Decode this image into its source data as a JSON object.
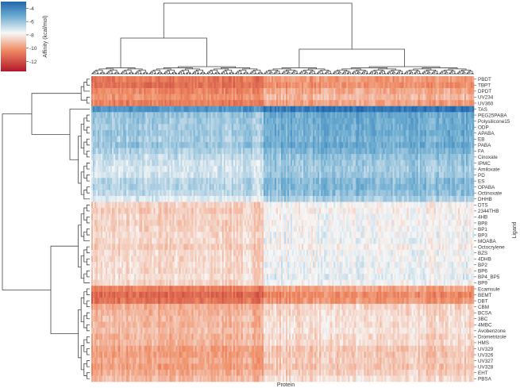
{
  "chart_data": {
    "type": "heatmap",
    "title": "",
    "xlabel": "Protein",
    "ylabel": "Ligand",
    "colorbar": {
      "label": "Affinity (kcal/mol)",
      "ticks": [
        -4,
        -6,
        -8,
        -10,
        -12
      ],
      "range": [
        -13.5,
        -3
      ],
      "colormap": "RdBu",
      "colors": {
        "low": "#b2182b",
        "mid": "#f7f7f7",
        "high": "#2166ac"
      }
    },
    "x_dendrogram": true,
    "y_dendrogram": true,
    "x_tick_labels_shown": false,
    "grid": false,
    "rows": [
      {
        "name": "PBDT",
        "value": -10.4
      },
      {
        "name": "TBPT",
        "value": -10.6
      },
      {
        "name": "DPDT",
        "value": -10.0
      },
      {
        "name": "UV234",
        "value": -9.7
      },
      {
        "name": "UV360",
        "value": -10.2
      },
      {
        "name": "TAS",
        "value": -4.0
      },
      {
        "name": "PEG25PABA",
        "value": -5.5
      },
      {
        "name": "Polysilicone15",
        "value": -5.6
      },
      {
        "name": "ODP",
        "value": -5.7
      },
      {
        "name": "APABA",
        "value": -5.6
      },
      {
        "name": "EB",
        "value": -5.8
      },
      {
        "name": "PABA",
        "value": -5.5
      },
      {
        "name": "FA",
        "value": -5.9
      },
      {
        "name": "Cinoxate",
        "value": -6.3
      },
      {
        "name": "IPMC",
        "value": -6.5
      },
      {
        "name": "Amiloxate",
        "value": -6.6
      },
      {
        "name": "PD",
        "value": -6.5
      },
      {
        "name": "ES",
        "value": -6.1
      },
      {
        "name": "OPABA",
        "value": -6.0
      },
      {
        "name": "Octinoxate",
        "value": -6.2
      },
      {
        "name": "DHHB",
        "value": -6.8
      },
      {
        "name": "DTS",
        "value": -8.2
      },
      {
        "name": "2344THB",
        "value": -8.3
      },
      {
        "name": "4HB",
        "value": -8.1
      },
      {
        "name": "BP8",
        "value": -8.2
      },
      {
        "name": "BP1",
        "value": -8.1
      },
      {
        "name": "BP3",
        "value": -8.0
      },
      {
        "name": "MOABA",
        "value": -8.0
      },
      {
        "name": "Octocrylene",
        "value": -8.3
      },
      {
        "name": "BZS",
        "value": -8.0
      },
      {
        "name": "4DHB",
        "value": -8.1
      },
      {
        "name": "BP2",
        "value": -7.9
      },
      {
        "name": "BP6",
        "value": -8.0
      },
      {
        "name": "BP4_BP5",
        "value": -7.8
      },
      {
        "name": "BP9",
        "value": -8.1
      },
      {
        "name": "Ecamsule",
        "value": -10.2
      },
      {
        "name": "BEMT",
        "value": -10.8
      },
      {
        "name": "DBT",
        "value": -10.5
      },
      {
        "name": "CBM",
        "value": -9.0
      },
      {
        "name": "BCSA",
        "value": -8.9
      },
      {
        "name": "3BC",
        "value": -8.7
      },
      {
        "name": "4MBC",
        "value": -8.8
      },
      {
        "name": "Avobenzone",
        "value": -8.6
      },
      {
        "name": "Drometrizole",
        "value": -8.9
      },
      {
        "name": "HMS",
        "value": -8.8
      },
      {
        "name": "UV329",
        "value": -9.3
      },
      {
        "name": "UV326",
        "value": -9.3
      },
      {
        "name": "UV327",
        "value": -9.2
      },
      {
        "name": "UV328",
        "value": -9.4
      },
      {
        "name": "EHT",
        "value": -9.1
      },
      {
        "name": "PBSA",
        "value": -8.7
      }
    ],
    "column_groups": [
      {
        "fraction": 0.45,
        "offset": -0.5
      },
      {
        "fraction": 0.55,
        "offset": 0.4
      }
    ]
  }
}
